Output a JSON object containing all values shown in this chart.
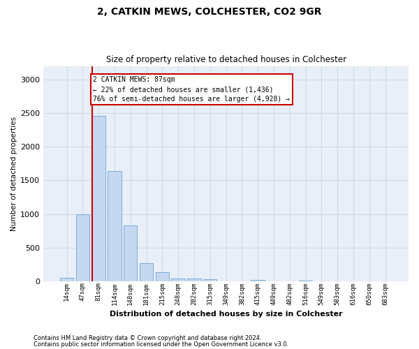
{
  "title": "2, CATKIN MEWS, COLCHESTER, CO2 9GR",
  "subtitle": "Size of property relative to detached houses in Colchester",
  "xlabel": "Distribution of detached houses by size in Colchester",
  "ylabel": "Number of detached properties",
  "bar_color": "#c5d8f0",
  "bar_edge_color": "#7aadd4",
  "grid_color": "#d0daea",
  "bg_color": "#e8eff8",
  "annotation_box_color": "#cc0000",
  "annotation_line_color": "#cc0000",
  "annotation_line1": "2 CATKIN MEWS: 87sqm",
  "annotation_line2": "← 22% of detached houses are smaller (1,436)",
  "annotation_line3": "76% of semi-detached houses are larger (4,928) →",
  "property_bar_index": 2,
  "categories": [
    "14sqm",
    "47sqm",
    "81sqm",
    "114sqm",
    "148sqm",
    "181sqm",
    "215sqm",
    "248sqm",
    "282sqm",
    "315sqm",
    "349sqm",
    "382sqm",
    "415sqm",
    "449sqm",
    "482sqm",
    "516sqm",
    "549sqm",
    "583sqm",
    "616sqm",
    "650sqm",
    "683sqm"
  ],
  "values": [
    55,
    1000,
    2460,
    1640,
    830,
    275,
    140,
    45,
    45,
    35,
    0,
    0,
    20,
    0,
    0,
    15,
    0,
    0,
    0,
    0,
    0
  ],
  "ylim": [
    0,
    3200
  ],
  "yticks": [
    0,
    500,
    1000,
    1500,
    2000,
    2500,
    3000
  ],
  "footnote1": "Contains HM Land Registry data © Crown copyright and database right 2024.",
  "footnote2": "Contains public sector information licensed under the Open Government Licence v3.0."
}
